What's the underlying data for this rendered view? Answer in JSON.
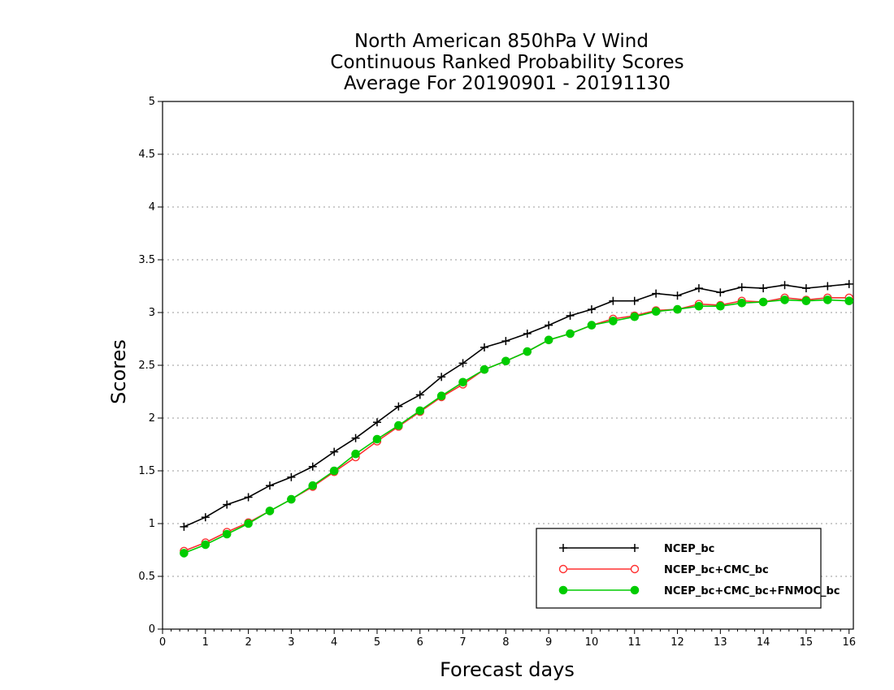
{
  "chart_data": {
    "type": "line",
    "title_lines": [
      "North American 850hPa V Wind",
      "Continuous Ranked Probability Scores",
      "Average For 20190901 - 20191130"
    ],
    "xlabel": "Forecast days",
    "ylabel": "Scores",
    "xlim": [
      0,
      16.1
    ],
    "ylim": [
      0,
      5
    ],
    "x_ticks": [
      0,
      1,
      2,
      3,
      4,
      5,
      6,
      7,
      8,
      9,
      10,
      11,
      12,
      13,
      14,
      15,
      16
    ],
    "y_ticks": [
      0,
      0.5,
      1,
      1.5,
      2,
      2.5,
      3,
      3.5,
      4,
      4.5,
      5
    ],
    "y_tick_labels": [
      "0",
      "0.5",
      "1",
      "1.5",
      "2",
      "2.5",
      "3",
      "3.5",
      "4",
      "4.5",
      "5"
    ],
    "grid": "horizontal dotted",
    "legend_position": "bottom-right",
    "x": [
      0.5,
      1.0,
      1.5,
      2.0,
      2.5,
      3.0,
      3.5,
      4.0,
      4.5,
      5.0,
      5.5,
      6.0,
      6.5,
      7.0,
      7.5,
      8.0,
      8.5,
      9.0,
      9.5,
      10.0,
      10.5,
      11.0,
      11.5,
      12.0,
      12.5,
      13.0,
      13.5,
      14.0,
      14.5,
      15.0,
      15.5,
      16.0
    ],
    "series": [
      {
        "name": "NCEP_bc",
        "color": "#000000",
        "marker": "plus",
        "values": [
          0.97,
          1.06,
          1.18,
          1.25,
          1.36,
          1.44,
          1.54,
          1.68,
          1.81,
          1.96,
          2.11,
          2.22,
          2.39,
          2.52,
          2.67,
          2.73,
          2.8,
          2.88,
          2.97,
          3.03,
          3.11,
          3.11,
          3.18,
          3.16,
          3.23,
          3.19,
          3.24,
          3.23,
          3.26,
          3.23,
          3.25,
          3.27
        ]
      },
      {
        "name": "NCEP_bc+CMC_bc",
        "color": "#ff3030",
        "marker": "open-circle",
        "values": [
          0.74,
          0.82,
          0.92,
          1.01,
          1.12,
          1.23,
          1.35,
          1.49,
          1.63,
          1.78,
          1.92,
          2.06,
          2.2,
          2.32,
          2.46,
          2.54,
          2.63,
          2.74,
          2.8,
          2.88,
          2.94,
          2.97,
          3.02,
          3.03,
          3.08,
          3.07,
          3.11,
          3.1,
          3.14,
          3.12,
          3.14,
          3.14
        ]
      },
      {
        "name": "NCEP_bc+CMC_bc+FNMOC_bc",
        "color": "#00cc00",
        "marker": "filled-circle",
        "values": [
          0.72,
          0.8,
          0.9,
          1.0,
          1.12,
          1.23,
          1.36,
          1.5,
          1.66,
          1.8,
          1.93,
          2.07,
          2.21,
          2.34,
          2.46,
          2.54,
          2.63,
          2.74,
          2.8,
          2.88,
          2.92,
          2.96,
          3.01,
          3.03,
          3.06,
          3.06,
          3.09,
          3.1,
          3.12,
          3.11,
          3.12,
          3.11
        ]
      }
    ]
  }
}
